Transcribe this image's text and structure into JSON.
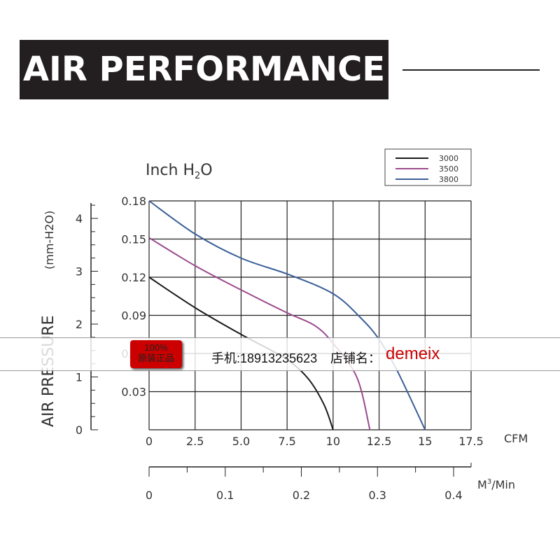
{
  "header": {
    "title": "AIR PERFORMANCE"
  },
  "overlay": {
    "badge_line1": "100%",
    "badge_line2": "原装正品",
    "phone": "手机:18913235623",
    "shop_label": "店铺名：",
    "shop_name": "demeix"
  },
  "colors": {
    "3000": "#1a1a1a",
    "3500": "#9b4a8e",
    "3800": "#3a5f98",
    "shop": "#cc0000"
  },
  "chart_data": {
    "type": "line",
    "unit_label": "Inch H2O",
    "ylabel": "AIR PRESSURE",
    "ylabel_unit": "(mm-H2O)",
    "xlabel": "CFM",
    "x2label": "M3/Min",
    "xlim": [
      0,
      17.5
    ],
    "ylim": [
      0,
      0.18
    ],
    "x_ticks": [
      "0",
      "2.5",
      "5.0",
      "7.5",
      "10",
      "12.5",
      "15",
      "17.5"
    ],
    "y_ticks": [
      "0.03",
      "0.06",
      "0.09",
      "0.12",
      "0.15",
      "0.18"
    ],
    "y2_ticks": [
      "0",
      "1",
      "2",
      "3",
      "4"
    ],
    "x2_ticks": [
      "0",
      "0.1",
      "0.2",
      "0.3",
      "0.4"
    ],
    "legend_position": "top-right",
    "grid": true,
    "series": [
      {
        "name": "3000",
        "x": [
          0,
          2.5,
          5,
          7.3,
          8.6,
          9.5,
          10
        ],
        "y": [
          0.12,
          0.096,
          0.075,
          0.057,
          0.041,
          0.02,
          0
        ]
      },
      {
        "name": "3500",
        "x": [
          0,
          2.5,
          5,
          7.5,
          9,
          10,
          11.3,
          12
        ],
        "y": [
          0.151,
          0.129,
          0.11,
          0.092,
          0.082,
          0.068,
          0.041,
          0
        ]
      },
      {
        "name": "3800",
        "x": [
          0,
          2.5,
          5,
          7.6,
          10,
          11.5,
          12.5,
          13.5,
          15
        ],
        "y": [
          0.18,
          0.154,
          0.135,
          0.122,
          0.107,
          0.088,
          0.071,
          0.046,
          0
        ]
      }
    ]
  }
}
